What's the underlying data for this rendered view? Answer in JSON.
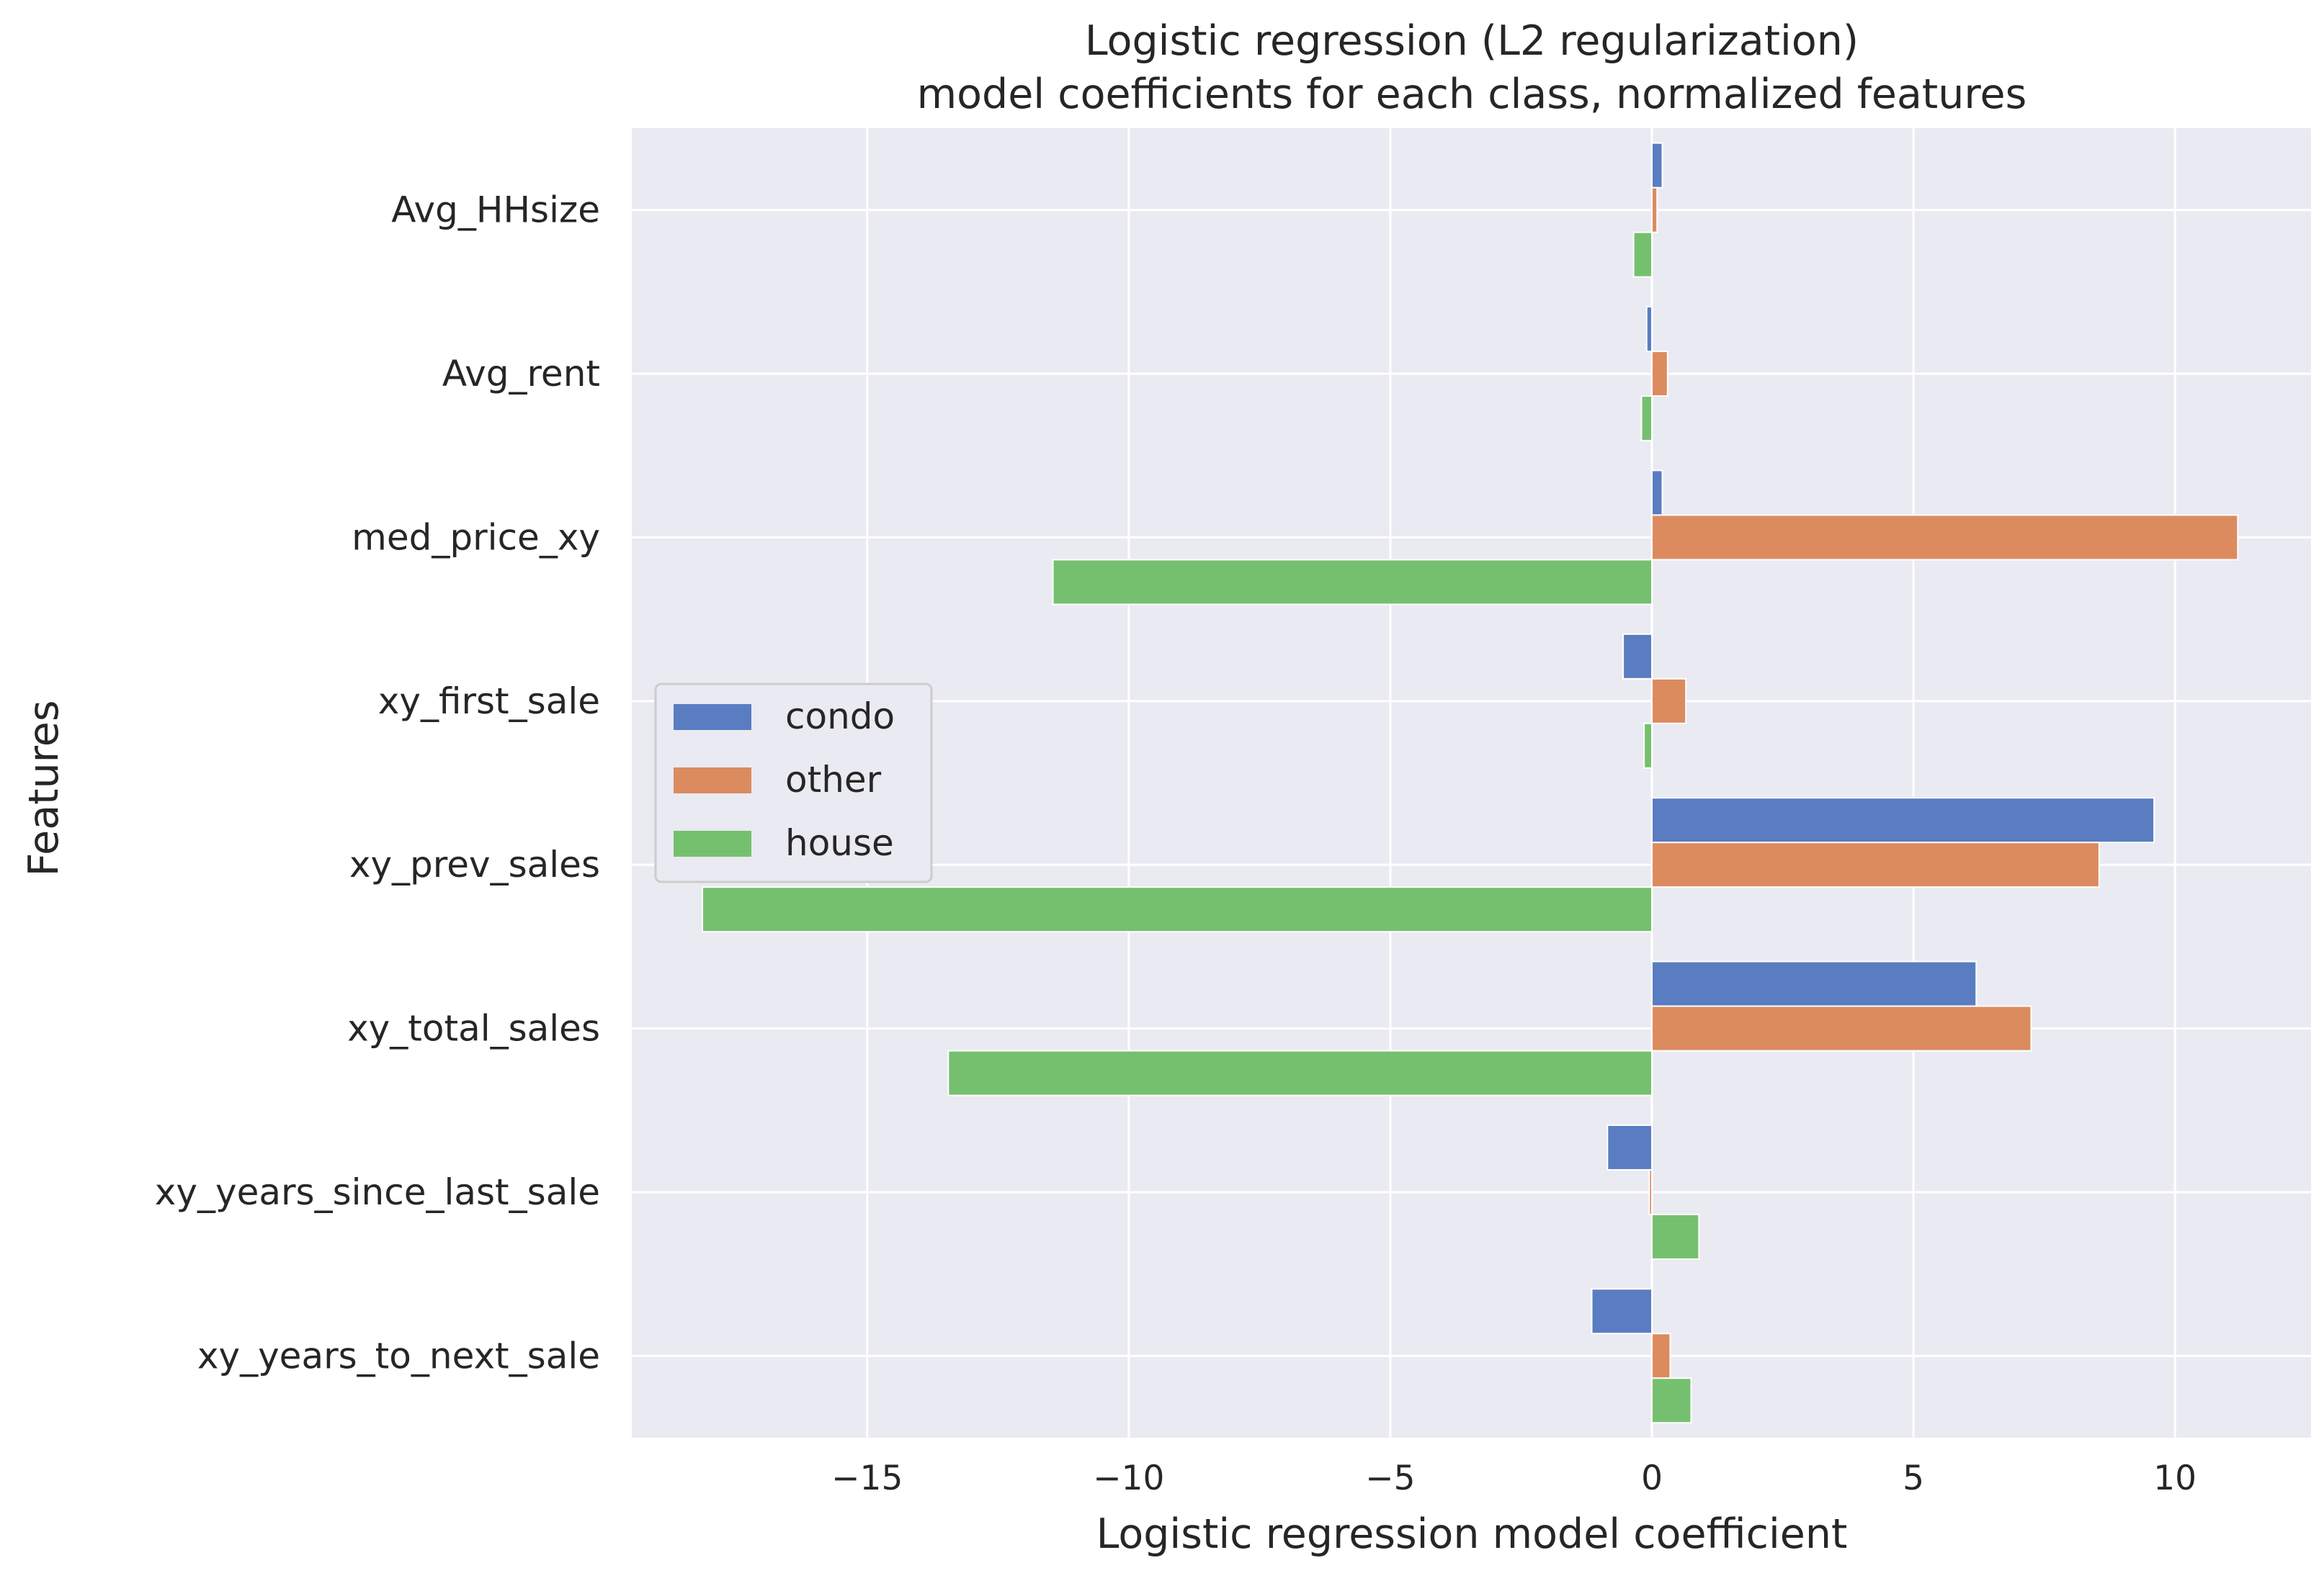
{
  "chart_data": {
    "type": "bar",
    "orientation": "horizontal",
    "title_line1": "Logistic regression (L2 regularization)",
    "title_line2": "model coefficients for each class, normalized features",
    "xlabel": "Logistic regression model coefficient",
    "ylabel": "Features",
    "categories": [
      "Avg_HHsize",
      "Avg_rent",
      "med_price_xy",
      "xy_first_sale",
      "xy_prev_sales",
      "xy_total_sales",
      "xy_years_since_last_sale",
      "xy_years_to_next_sale"
    ],
    "series": [
      {
        "name": "condo",
        "color": "#5a7dc1",
        "values": [
          0.2,
          -0.1,
          0.2,
          -0.55,
          9.6,
          6.2,
          -0.85,
          -1.15
        ]
      },
      {
        "name": "other",
        "color": "#dc8b5f",
        "values": [
          0.1,
          0.3,
          11.2,
          0.65,
          8.55,
          7.25,
          -0.05,
          0.35
        ]
      },
      {
        "name": "house",
        "color": "#75c06f",
        "values": [
          -0.35,
          -0.2,
          -11.45,
          -0.15,
          -18.15,
          -13.45,
          0.9,
          0.75
        ]
      }
    ],
    "xlim": [
      -19.5,
      12.6
    ],
    "xticks": [
      -15,
      -10,
      -5,
      0,
      5,
      10
    ],
    "xtick_labels": [
      "−15",
      "−10",
      "−5",
      "0",
      "5",
      "10"
    ],
    "grid": true,
    "legend_position": "center-left"
  }
}
